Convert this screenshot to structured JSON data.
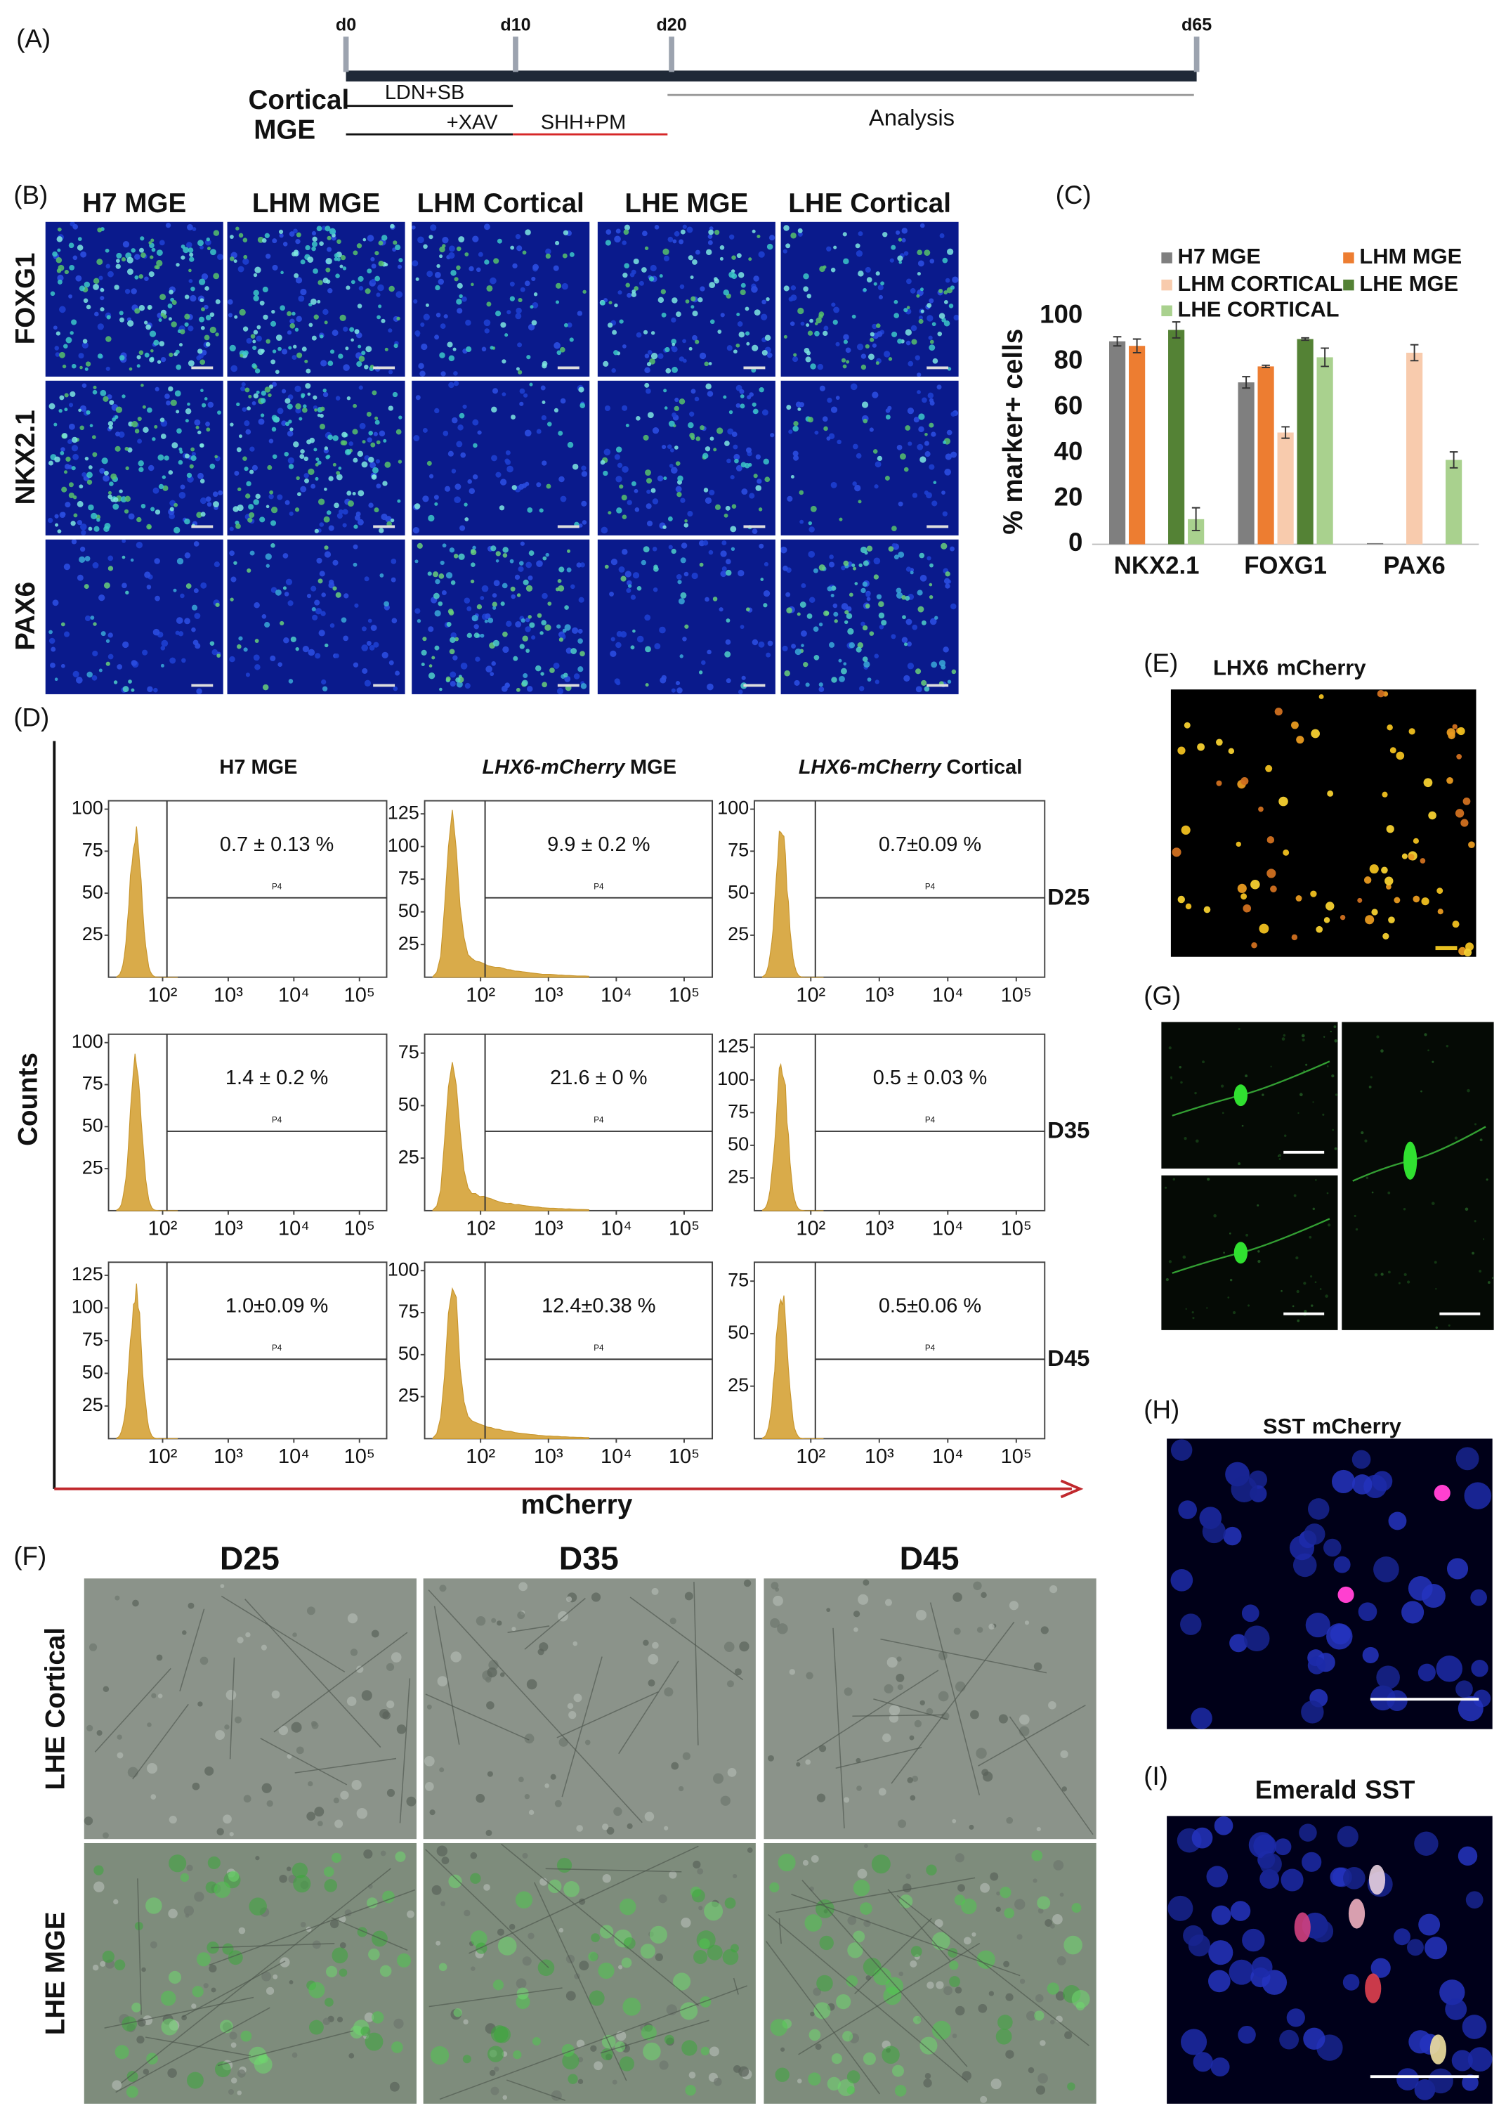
{
  "panel_a": {
    "label": "(A)",
    "timepoints": [
      "d0",
      "d10",
      "d20",
      "d65"
    ],
    "rows": [
      "Cortical",
      "MGE"
    ],
    "treatments": [
      "LDN+SB",
      "+XAV",
      "SHH+PM"
    ],
    "analysis": "Analysis"
  },
  "panel_b": {
    "label": "(B)",
    "columns": [
      "H7 MGE",
      "LHM MGE",
      "LHM Cortical",
      "LHE MGE",
      "LHE Cortical"
    ],
    "rows": [
      "FOXG1",
      "NKX2.1",
      "PAX6"
    ]
  },
  "chart_data": {
    "type": "bar",
    "label": "(C)",
    "y_label": "% marker+ cells",
    "categories": [
      "NKX2.1",
      "FOXG1",
      "PAX6"
    ],
    "series": [
      {
        "name": "H7 MGE",
        "color": "#7f7f7f",
        "values": [
          89,
          71,
          0.5
        ],
        "errors": [
          2,
          2.5,
          0
        ]
      },
      {
        "name": "LHM MGE",
        "color": "#ed7d31",
        "values": [
          87,
          78,
          0
        ],
        "errors": [
          3,
          0.5,
          0
        ]
      },
      {
        "name": "LHM CORTICAL",
        "color": "#f8cbad",
        "values": [
          0,
          49,
          84
        ],
        "errors": [
          0,
          2.5,
          3.5
        ]
      },
      {
        "name": "LHE MGE",
        "color": "#548235",
        "values": [
          94,
          90,
          0
        ],
        "errors": [
          3.5,
          0.5,
          0
        ]
      },
      {
        "name": "LHE CORTICAL",
        "color": "#a9d18e",
        "values": [
          11,
          82,
          37
        ],
        "errors": [
          5,
          4,
          3.5
        ]
      }
    ],
    "ylim": [
      0,
      100
    ],
    "yticks": [
      0,
      20,
      40,
      60,
      80,
      100
    ],
    "grid": false
  },
  "panel_d": {
    "label": "(D)",
    "y_label": "Counts",
    "x_label": "mCherry",
    "gate_label": "P4",
    "columns": [
      {
        "text": "H7 MGE"
      },
      {
        "italic": "LHX6-mCherry",
        "text": "MGE"
      },
      {
        "italic": "LHX6-mCherry",
        "text": "Cortical"
      }
    ],
    "rows": [
      "D25",
      "D35",
      "D45"
    ],
    "xlim": [
      15,
      260000
    ],
    "log_x": true,
    "xticks": [
      {
        "value": 100,
        "label": "10²"
      },
      {
        "value": 1000,
        "label": "10³"
      },
      {
        "value": 10000,
        "label": "10⁴"
      },
      {
        "value": 100000,
        "label": "10⁵"
      }
    ],
    "plots": [
      [
        {
          "ylim": [
            0,
            105
          ],
          "yticks": [
            25,
            50,
            75,
            100
          ],
          "percent": "0.7 ± 0.13 %"
        },
        {
          "ylim": [
            0,
            135
          ],
          "yticks": [
            25,
            50,
            75,
            100,
            125
          ],
          "percent": "9.9 ± 0.2 %"
        },
        {
          "ylim": [
            0,
            105
          ],
          "yticks": [
            25,
            50,
            75,
            100
          ],
          "percent": "0.7±0.09 %"
        }
      ],
      [
        {
          "ylim": [
            0,
            105
          ],
          "yticks": [
            25,
            50,
            75,
            100
          ],
          "percent": "1.4 ± 0.2 %"
        },
        {
          "ylim": [
            0,
            84
          ],
          "yticks": [
            25,
            50,
            75
          ],
          "percent": "21.6 ± 0 %"
        },
        {
          "ylim": [
            0,
            135
          ],
          "yticks": [
            25,
            50,
            75,
            100,
            125
          ],
          "percent": "0.5 ± 0.03 %"
        }
      ],
      [
        {
          "ylim": [
            0,
            135
          ],
          "yticks": [
            25,
            50,
            75,
            100,
            125
          ],
          "percent": "1.0±0.09 %"
        },
        {
          "ylim": [
            0,
            105
          ],
          "yticks": [
            25,
            50,
            75,
            100
          ],
          "percent": "12.4±0.38 %"
        },
        {
          "ylim": [
            0,
            84
          ],
          "yticks": [
            25,
            50,
            75
          ],
          "percent": "0.5±0.06 %"
        }
      ]
    ]
  },
  "panel_e": {
    "label": "(E)",
    "stains": [
      "LHX6",
      "mCherry"
    ]
  },
  "panel_f": {
    "label": "(F)",
    "columns": [
      "D25",
      "D35",
      "D45"
    ],
    "rows": [
      "LHE Cortical",
      "LHE MGE"
    ]
  },
  "panel_g": {
    "label": "(G)"
  },
  "panel_h": {
    "label": "(H)",
    "stains": [
      "SST",
      "mCherry"
    ]
  },
  "panel_i": {
    "label": "(I)",
    "stains": [
      "Emerald",
      "SST"
    ]
  }
}
